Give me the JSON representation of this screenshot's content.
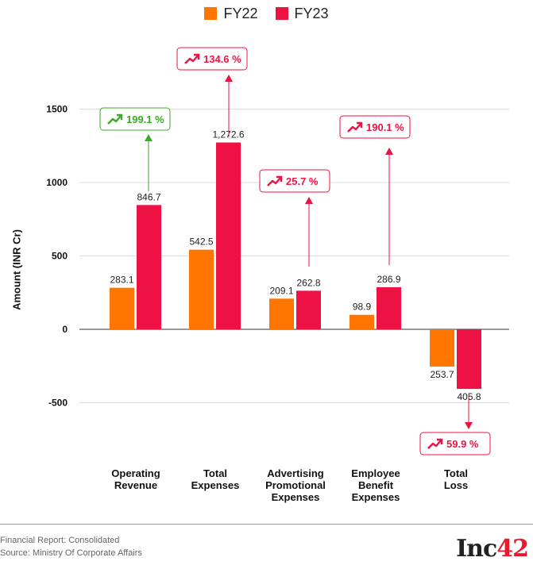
{
  "colors": {
    "fy22": "#ff7500",
    "fy23": "#ee1144",
    "up_green": "#3aaa25",
    "up_red": "#ee1144",
    "grid": "#dddddd"
  },
  "legend": {
    "fy22": "FY22",
    "fy23": "FY23"
  },
  "footer": {
    "line1": "Financial Report: Consolidated",
    "line2": "Source: Ministry Of Corporate Affairs"
  },
  "logo": {
    "text_main": "Inc",
    "text_accent": "42"
  },
  "chart_data": {
    "type": "bar",
    "ylabel": "Amount (INR Cr)",
    "ylim": [
      -700,
      1600
    ],
    "yticks": [
      -500,
      0,
      500,
      1000,
      1500
    ],
    "grid": true,
    "legend_position": "top-center",
    "categories": [
      [
        "Operating",
        "Revenue"
      ],
      [
        "Total",
        "Expenses"
      ],
      [
        "Advertising",
        "Promotional",
        "Expenses"
      ],
      [
        "Employee",
        "Benefit",
        "Expenses"
      ],
      [
        "Total",
        "Loss"
      ]
    ],
    "series": [
      {
        "name": "FY22",
        "values": [
          283.1,
          542.5,
          209.1,
          98.9,
          -253.7
        ]
      },
      {
        "name": "FY23",
        "values": [
          846.7,
          1272.6,
          262.8,
          286.9,
          -405.8
        ]
      }
    ],
    "data_labels": {
      "FY22": [
        "283.1",
        "542.5",
        "209.1",
        "98.9",
        "253.7"
      ],
      "FY23": [
        "846.7",
        "1,272.6",
        "262.8",
        "286.9",
        "405.8"
      ]
    },
    "annotations": [
      {
        "category": 0,
        "text": "199.1 %",
        "color": "green",
        "direction": "up"
      },
      {
        "category": 1,
        "text": "134.6 %",
        "color": "red",
        "direction": "up"
      },
      {
        "category": 2,
        "text": "25.7 %",
        "color": "red",
        "direction": "up"
      },
      {
        "category": 3,
        "text": "190.1 %",
        "color": "red",
        "direction": "up"
      },
      {
        "category": 4,
        "text": "59.9 %",
        "color": "red",
        "direction": "down"
      }
    ]
  }
}
